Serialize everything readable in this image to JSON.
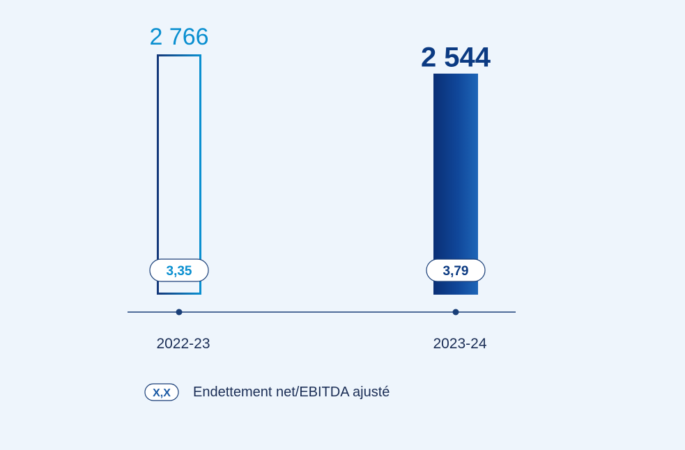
{
  "chart_data": {
    "type": "bar",
    "categories": [
      "2022-23",
      "2023-24"
    ],
    "values": [
      2766,
      2544
    ],
    "value_labels": [
      "2 766",
      "2 544"
    ],
    "ratio_labels": [
      "3,35",
      "3,79"
    ],
    "ratios": [
      3.35,
      3.79
    ],
    "title": "",
    "xlabel": "",
    "ylabel": "",
    "ylim": [
      0,
      2766
    ],
    "grid": false,
    "legend": {
      "badge": "X,X",
      "text": "Endettement net/EBITDA ajusté"
    },
    "styles": [
      "outline",
      "filled"
    ]
  },
  "colors": {
    "background": "#eef5fc",
    "dark_blue": "#0b3a82",
    "mid_blue": "#1b5aa5",
    "light_blue": "#0a8fd0",
    "axis": "#1a3f78",
    "badge_fill": "#ffffff"
  }
}
